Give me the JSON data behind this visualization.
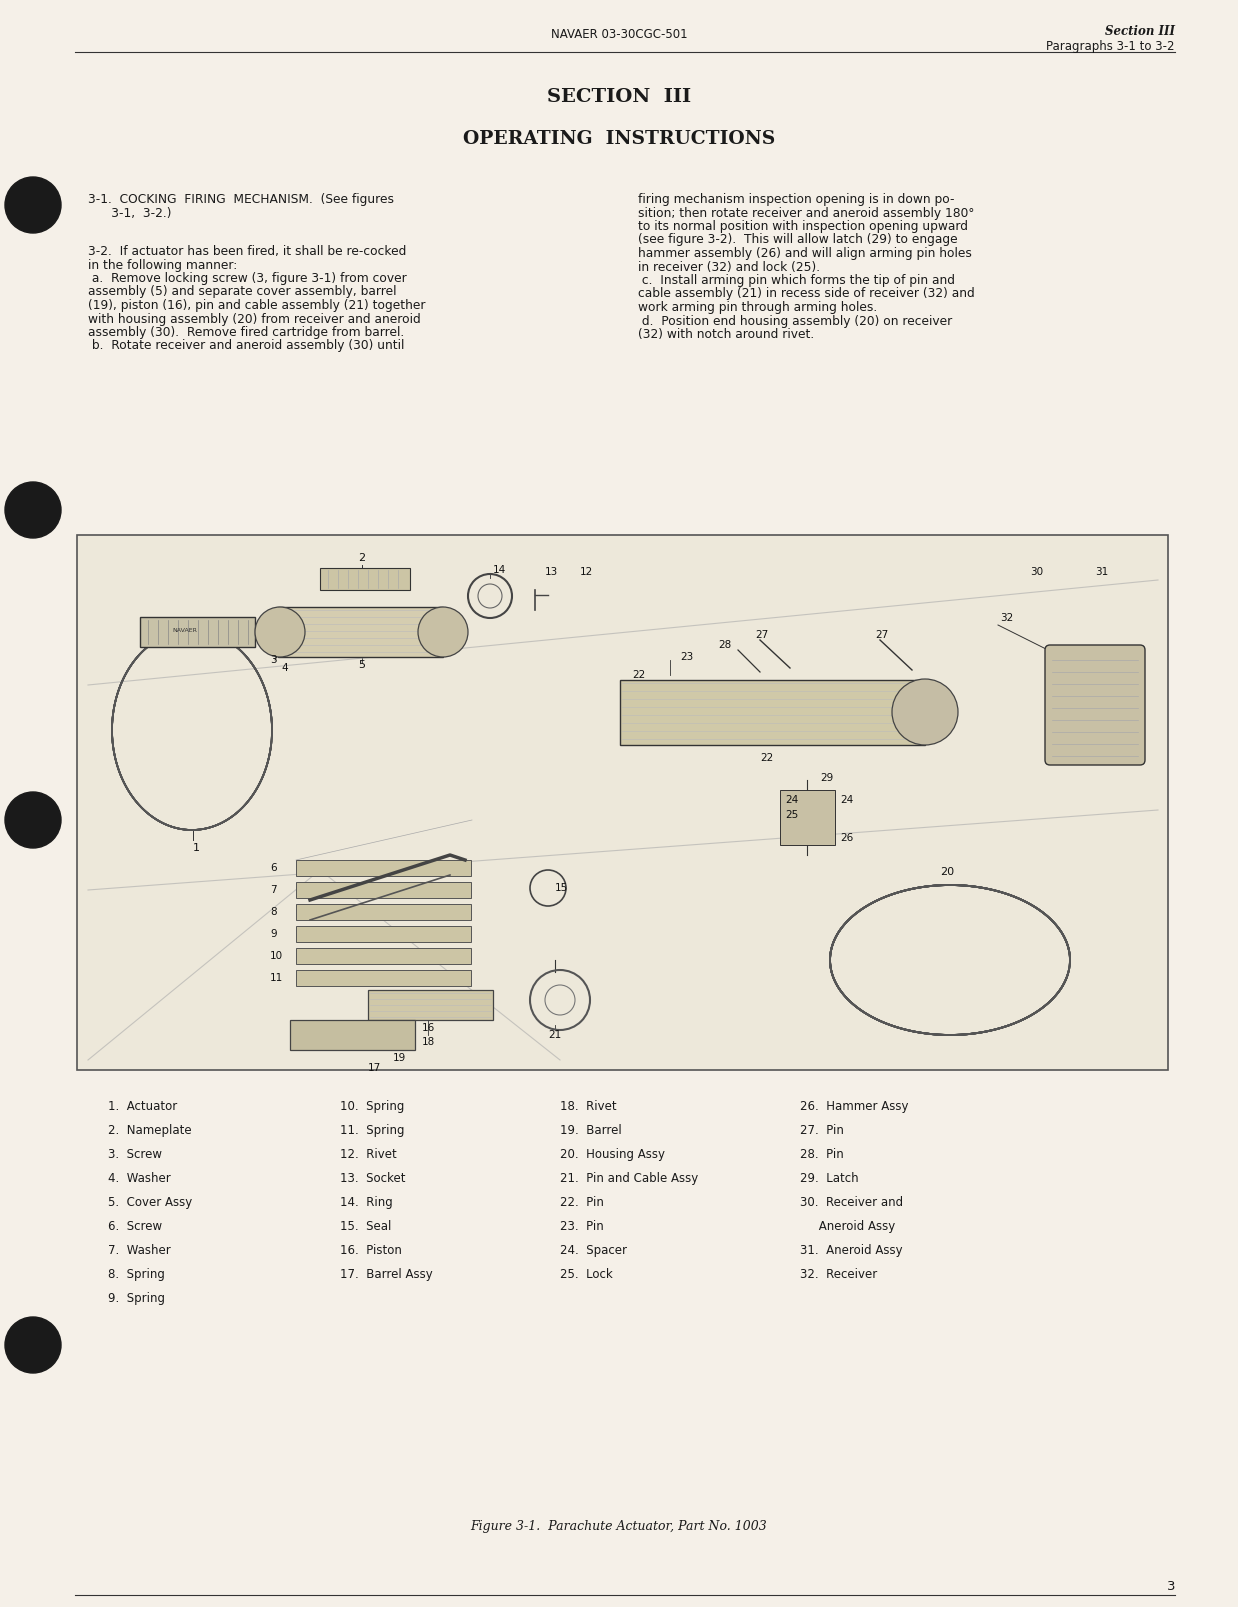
{
  "page_bg": "#f5f0e8",
  "header_left": "NAVAER 03-30CGC-501",
  "header_right_line1": "Section III",
  "header_right_line2": "Paragraphs 3-1 to 3-2",
  "section_title": "SECTION  III",
  "section_subtitle": "OPERATING  INSTRUCTIONS",
  "para_3_1_col1": [
    "3-1.  COCKING  FIRING  MECHANISM.  (See figures",
    "      3-1,  3-2.)"
  ],
  "para_3_1_col2": [
    "firing mechanism inspection opening is in down po-",
    "sition; then rotate receiver and aneroid assembly 180°",
    "to its normal position with inspection opening upward",
    "(see figure 3-2).  This will allow latch (29) to engage",
    "hammer assembly (26) and will align arming pin holes",
    "in receiver (32) and lock (25).",
    " c.  Install arming pin which forms the tip of pin and",
    "cable assembly (21) in recess side of receiver (32) and",
    "work arming pin through arming holes.",
    " d.  Position end housing assembly (20) on receiver",
    "(32) with notch around rivet."
  ],
  "para_3_2_col1": [
    "3-2.  If actuator has been fired, it shall be re-cocked",
    "in the following manner:",
    " a.  Remove locking screw (3, figure 3-1) from cover",
    "assembly (5) and separate cover assembly, barrel",
    "(19), piston (16), pin and cable assembly (21) together",
    "with housing assembly (20) from receiver and aneroid",
    "assembly (30).  Remove fired cartridge from barrel.",
    " b.  Rotate receiver and aneroid assembly (30) until"
  ],
  "legend_col1": [
    "1.  Actuator",
    "2.  Nameplate",
    "3.  Screw",
    "4.  Washer",
    "5.  Cover Assy",
    "6.  Screw",
    "7.  Washer",
    "8.  Spring",
    "9.  Spring"
  ],
  "legend_col2": [
    "10.  Spring",
    "11.  Spring",
    "12.  Rivet",
    "13.  Socket",
    "14.  Ring",
    "15.  Seal",
    "16.  Piston",
    "17.  Barrel Assy"
  ],
  "legend_col3": [
    "18.  Rivet",
    "19.  Barrel",
    "20.  Housing Assy",
    "21.  Pin and Cable Assy",
    "22.  Pin",
    "23.  Pin",
    "24.  Spacer",
    "25.  Lock"
  ],
  "legend_col4": [
    "26.  Hammer Assy",
    "27.  Pin",
    "28.  Pin",
    "29.  Latch",
    "30.  Receiver and",
    "     Aneroid Assy",
    "31.  Aneroid Assy",
    "32.  Receiver"
  ],
  "figure_caption": "Figure 3-1.  Parachute Actuator, Part No. 1003",
  "page_number": "3",
  "text_color": "#1a1a1a",
  "diagram_bg": "#ede8da",
  "line_color": "#888888"
}
